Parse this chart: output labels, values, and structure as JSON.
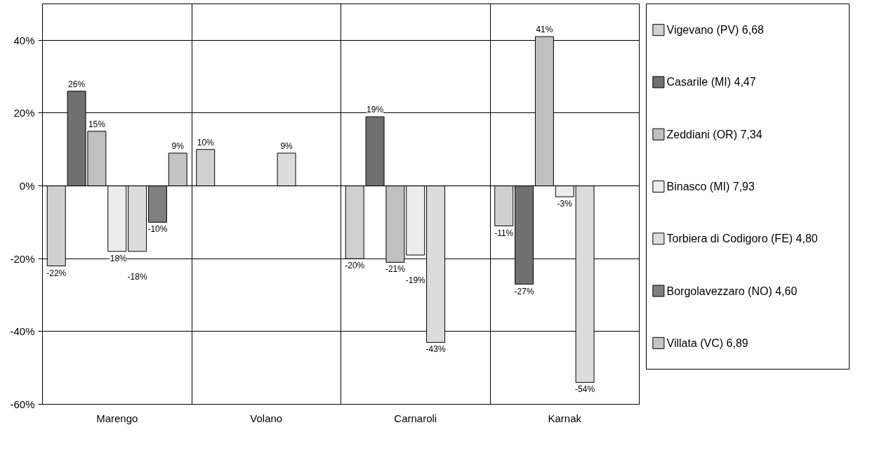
{
  "chart_data": {
    "type": "bar",
    "categories": [
      "Marengo",
      "Volano",
      "Carnaroli",
      "Karnak"
    ],
    "series": [
      {
        "name": "Vigevano (PV) 6,68",
        "color": "#d0d0d0",
        "values": [
          -22,
          10,
          -20,
          -11
        ],
        "value_labels": [
          "-22%",
          "10%",
          "-20%",
          "-11%"
        ]
      },
      {
        "name": "Casarile (MI) 4,47",
        "color": "#707070",
        "values": [
          26,
          null,
          19,
          -27
        ],
        "value_labels": [
          "26%",
          null,
          "19%",
          "-27%"
        ]
      },
      {
        "name": "Zeddiani (OR) 7,34",
        "color": "#c0c0c0",
        "values": [
          15,
          null,
          -21,
          41
        ],
        "value_labels": [
          "15%",
          null,
          "-21%",
          "41%"
        ]
      },
      {
        "name": "Binasco (MI) 7,93",
        "color": "#ececec",
        "values": [
          -18,
          null,
          -19,
          -3
        ],
        "value_labels": [
          "-18%",
          null,
          "-19%",
          "-3%"
        ]
      },
      {
        "name": "Torbiera di Codigoro (FE) 4,80",
        "color": "#dcdcdc",
        "values": [
          -18,
          9,
          -43,
          -54
        ],
        "value_labels": [
          "-18%",
          "9%",
          "-43%",
          "-54%"
        ]
      },
      {
        "name": "Borgolavezzaro (NO) 4,60",
        "color": "#808080",
        "values": [
          -10,
          null,
          null,
          null
        ],
        "value_labels": [
          "-10%",
          null,
          null,
          null
        ]
      },
      {
        "name": "Villata (VC) 6,89",
        "color": "#c4c4c4",
        "values": [
          9,
          null,
          null,
          null
        ],
        "value_labels": [
          "9%",
          null,
          null,
          null
        ]
      }
    ],
    "ylim": [
      -60,
      50
    ],
    "yticks": [
      {
        "value": -60,
        "label": "-60%"
      },
      {
        "value": -40,
        "label": "-40%"
      },
      {
        "value": -20,
        "label": "-20%"
      },
      {
        "value": 0,
        "label": "0%"
      },
      {
        "value": 20,
        "label": "20%"
      },
      {
        "value": 40,
        "label": "40%"
      }
    ],
    "grid": true,
    "legend": "right"
  }
}
